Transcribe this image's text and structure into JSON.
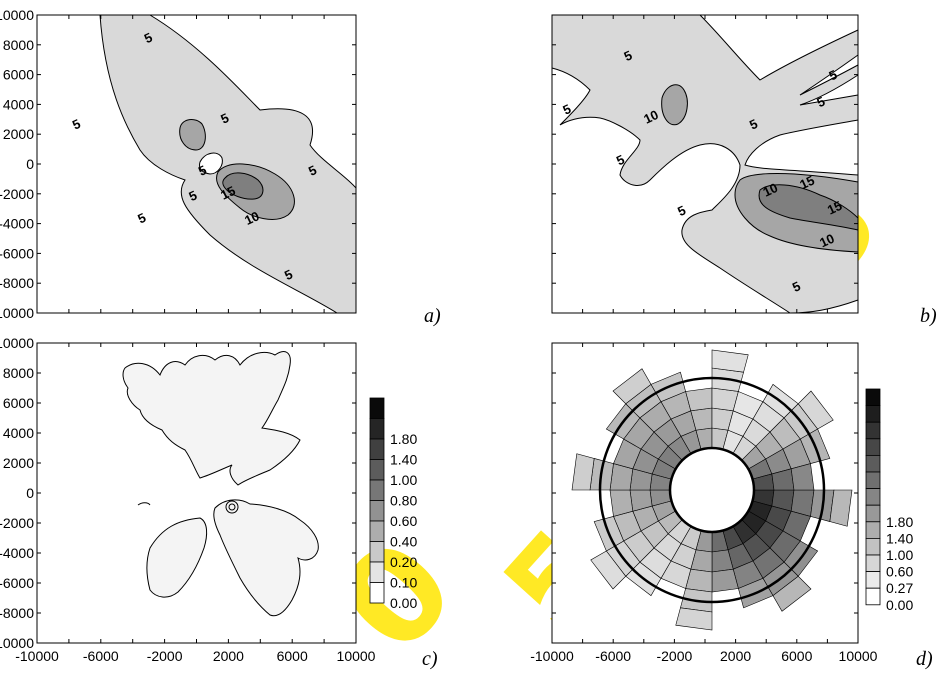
{
  "panel_labels": [
    "a)",
    "b)",
    "c)",
    "d)"
  ],
  "colors": {
    "fill_light": "#d9d9d9",
    "fill_mid": "#a6a6a6",
    "fill_dark": "#7f7f7f",
    "c_fill": "#f4f4f4",
    "watermark": "#ffe600"
  },
  "chart_data": [
    {
      "type": "contour",
      "panel": "a)",
      "xlim": [
        -10000,
        10000
      ],
      "ylim": [
        -10000,
        10000
      ],
      "y_ticks": [
        "10000",
        "8000",
        "6000",
        "4000",
        "2000",
        "0",
        "-2000",
        "-4000",
        "-6000",
        "-8000",
        "-10000"
      ],
      "contour_levels": [
        "5",
        "10",
        "15"
      ],
      "contour_labels": [
        {
          "text": "5",
          "x": -3000,
          "y": 8400
        },
        {
          "text": "5",
          "x": -7500,
          "y": 2600
        },
        {
          "text": "5",
          "x": 1800,
          "y": 3000
        },
        {
          "text": "5",
          "x": 400,
          "y": -500
        },
        {
          "text": "5",
          "x": -200,
          "y": -2200
        },
        {
          "text": "15",
          "x": 2000,
          "y": -2000
        },
        {
          "text": "10",
          "x": 3500,
          "y": -3700
        },
        {
          "text": "5",
          "x": -3400,
          "y": -3700
        },
        {
          "text": "5",
          "x": 7300,
          "y": -500
        },
        {
          "text": "5",
          "x": 5800,
          "y": -7500
        }
      ]
    },
    {
      "type": "contour",
      "panel": "b)",
      "xlim": [
        -10000,
        10000
      ],
      "ylim": [
        -10000,
        10000
      ],
      "contour_levels": [
        "5",
        "10",
        "15"
      ],
      "contour_labels": [
        {
          "text": "5",
          "x": -5000,
          "y": 7200
        },
        {
          "text": "5",
          "x": 8400,
          "y": 5900
        },
        {
          "text": "5",
          "x": 7600,
          "y": 4100
        },
        {
          "text": "5",
          "x": -9000,
          "y": 3600
        },
        {
          "text": "10",
          "x": -3500,
          "y": 3100
        },
        {
          "text": "5",
          "x": 3200,
          "y": 2600
        },
        {
          "text": "5",
          "x": -5500,
          "y": 200
        },
        {
          "text": "10",
          "x": 4300,
          "y": -1800
        },
        {
          "text": "15",
          "x": 6700,
          "y": -1300
        },
        {
          "text": "15",
          "x": 8500,
          "y": -3000
        },
        {
          "text": "5",
          "x": -1500,
          "y": -3200
        },
        {
          "text": "10",
          "x": 8000,
          "y": -5200
        },
        {
          "text": "5",
          "x": 6000,
          "y": -8300
        }
      ]
    },
    {
      "type": "contour",
      "panel": "c)",
      "xlim": [
        -10000,
        10000
      ],
      "ylim": [
        -10000,
        10000
      ],
      "x_ticks": [
        "-10000",
        "-6000",
        "-2000",
        "2000",
        "6000",
        "10000"
      ],
      "y_ticks": [
        "10000",
        "8000",
        "6000",
        "4000",
        "2000",
        "0",
        "-2000",
        "-4000",
        "-6000",
        "-8000",
        "-10000"
      ],
      "colorbar_levels": [
        "1.80",
        "1.40",
        "1.00",
        "0.80",
        "0.60",
        "0.40",
        "0.20",
        "0.10",
        "0.00"
      ]
    },
    {
      "type": "contour",
      "panel": "d)",
      "xlim": [
        -10000,
        10000
      ],
      "ylim": [
        -10000,
        10000
      ],
      "x_ticks": [
        "-10000",
        "-6000",
        "-2000",
        "2000",
        "6000",
        "10000"
      ],
      "colorbar_levels": [
        "1.80",
        "1.40",
        "1.00",
        "0.60",
        "0.27",
        "0.00"
      ]
    }
  ]
}
